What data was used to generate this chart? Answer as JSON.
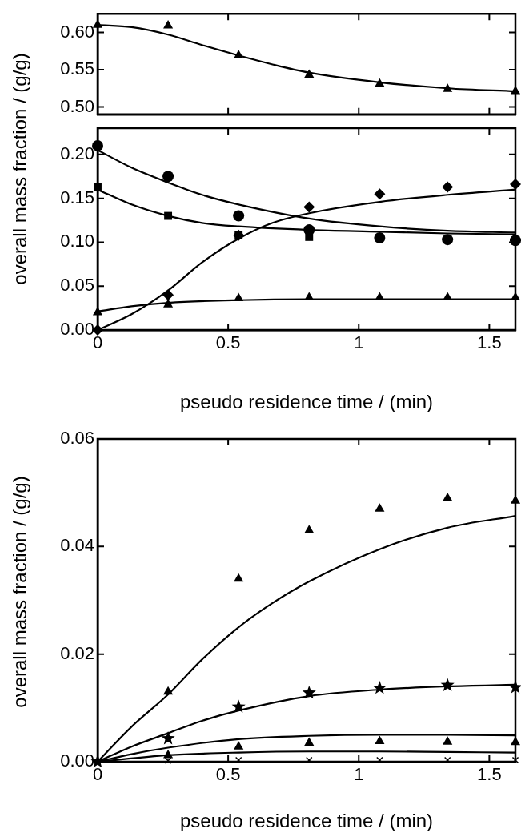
{
  "chart_data": [
    {
      "type": "scatter",
      "tick_labels": "y",
      "xlim": [
        0,
        1.6
      ],
      "xticks": [
        0,
        0.5,
        1,
        1.5
      ],
      "ylim": [
        0.49,
        0.625
      ],
      "yticks": [
        {
          "value": 0.5,
          "label": "0.50"
        },
        {
          "value": 0.55,
          "label": "0.55"
        },
        {
          "value": 0.6,
          "label": "0.60"
        }
      ],
      "series": [
        {
          "type": "scatter",
          "marker": "triangle",
          "color": "#000000",
          "x": [
            0,
            0.27,
            0.54,
            0.81,
            1.08,
            1.34,
            1.6
          ],
          "values": [
            0.61,
            0.609,
            0.569,
            0.543,
            0.531,
            0.524,
            0.521
          ]
        },
        {
          "type": "line",
          "marker": "none",
          "color": "#000000",
          "x": [
            0,
            0.13,
            0.27,
            0.4,
            0.54,
            0.67,
            0.81,
            1.08,
            1.34,
            1.6
          ],
          "values": [
            0.61,
            0.607,
            0.597,
            0.583,
            0.569,
            0.557,
            0.546,
            0.533,
            0.525,
            0.521
          ]
        }
      ]
    },
    {
      "type": "scatter",
      "xlabel": "pseudo residence time / (min)",
      "ylabel": "overall mass fraction / (g/g)",
      "xlim": [
        0,
        1.6
      ],
      "xticks": [
        0,
        0.5,
        1,
        1.5
      ],
      "ylim": [
        0,
        0.23
      ],
      "yticks": [
        {
          "value": 0,
          "label": "0.00"
        },
        {
          "value": 0.05,
          "label": "0.05"
        },
        {
          "value": 0.1,
          "label": "0.10"
        },
        {
          "value": 0.15,
          "label": "0.15"
        },
        {
          "value": 0.2,
          "label": "0.20"
        }
      ],
      "series": [
        {
          "type": "scatter",
          "marker": "circle",
          "color": "#000000",
          "x": [
            0,
            0.27,
            0.54,
            0.81,
            1.08,
            1.34,
            1.6
          ],
          "values": [
            0.21,
            0.175,
            0.13,
            0.114,
            0.105,
            0.103,
            0.102
          ]
        },
        {
          "type": "line",
          "marker": "none",
          "color": "#000000",
          "x": [
            0,
            0.13,
            0.27,
            0.4,
            0.54,
            0.81,
            1.08,
            1.34,
            1.6
          ],
          "values": [
            0.205,
            0.185,
            0.168,
            0.154,
            0.143,
            0.127,
            0.118,
            0.113,
            0.111
          ]
        },
        {
          "type": "scatter",
          "marker": "square",
          "color": "#000000",
          "x": [
            0,
            0.27,
            0.54,
            0.81
          ],
          "values": [
            0.163,
            0.13,
            0.108,
            0.106
          ]
        },
        {
          "type": "line",
          "marker": "none",
          "color": "#000000",
          "x": [
            0,
            0.13,
            0.27,
            0.4,
            0.54,
            0.81,
            1.08,
            1.34,
            1.6
          ],
          "values": [
            0.16,
            0.143,
            0.13,
            0.122,
            0.118,
            0.114,
            0.112,
            0.11,
            0.109
          ]
        },
        {
          "type": "scatter",
          "marker": "diamond",
          "color": "#000000",
          "x": [
            0,
            0.27,
            0.54,
            0.81,
            1.08,
            1.34,
            1.6
          ],
          "values": [
            0,
            0.04,
            0.108,
            0.14,
            0.155,
            0.163,
            0.166
          ]
        },
        {
          "type": "line",
          "marker": "none",
          "color": "#000000",
          "x": [
            0,
            0.13,
            0.27,
            0.4,
            0.54,
            0.67,
            0.81,
            1.08,
            1.34,
            1.6
          ],
          "values": [
            0,
            0.018,
            0.045,
            0.077,
            0.104,
            0.122,
            0.133,
            0.146,
            0.154,
            0.16
          ]
        },
        {
          "type": "scatter",
          "marker": "triangle",
          "color": "#000000",
          "x": [
            0,
            0.27,
            0.54,
            0.81,
            1.08,
            1.34,
            1.6
          ],
          "values": [
            0.02,
            0.029,
            0.036,
            0.037,
            0.037,
            0.037,
            0.037
          ]
        },
        {
          "type": "line",
          "marker": "none",
          "color": "#000000",
          "x": [
            0,
            0.13,
            0.27,
            0.54,
            0.81,
            1.08,
            1.6
          ],
          "values": [
            0.021,
            0.027,
            0.031,
            0.034,
            0.035,
            0.035,
            0.035
          ]
        }
      ]
    },
    {
      "type": "scatter",
      "xlabel": "pseudo residence time / (min)",
      "ylabel": "overall mass fraction / (g/g)",
      "xlim": [
        0,
        1.6
      ],
      "xticks": [
        0,
        0.5,
        1,
        1.5
      ],
      "ylim": [
        0,
        0.06
      ],
      "yticks": [
        {
          "value": 0,
          "label": "0.00"
        },
        {
          "value": 0.02,
          "label": "0.02"
        },
        {
          "value": 0.04,
          "label": "0.04"
        },
        {
          "value": 0.06,
          "label": "0.06"
        }
      ],
      "series": [
        {
          "type": "scatter",
          "marker": "triangle",
          "color": "#000000",
          "x": [
            0.27,
            0.54,
            0.81,
            1.08,
            1.34,
            1.6
          ],
          "values": [
            0.013,
            0.034,
            0.043,
            0.047,
            0.049,
            0.0485
          ]
        },
        {
          "type": "line",
          "marker": "none",
          "color": "#000000",
          "x": [
            0,
            0.13,
            0.27,
            0.4,
            0.54,
            0.67,
            0.81,
            1.08,
            1.34,
            1.6
          ],
          "values": [
            0,
            0.0065,
            0.0125,
            0.019,
            0.025,
            0.0295,
            0.0335,
            0.0395,
            0.0435,
            0.0457
          ]
        },
        {
          "type": "scatter",
          "marker": "star",
          "color": "#000000",
          "x": [
            0,
            0.27,
            0.54,
            0.81,
            1.08,
            1.34,
            1.6
          ],
          "values": [
            0,
            0.0043,
            0.0102,
            0.0128,
            0.0137,
            0.0142,
            0.0138
          ]
        },
        {
          "type": "line",
          "marker": "none",
          "color": "#000000",
          "x": [
            0,
            0.13,
            0.27,
            0.4,
            0.54,
            0.81,
            1.08,
            1.34,
            1.6
          ],
          "values": [
            0,
            0.0028,
            0.0053,
            0.0076,
            0.0095,
            0.0122,
            0.0134,
            0.014,
            0.0143
          ]
        },
        {
          "type": "scatter",
          "marker": "triangle",
          "color": "#000000",
          "x": [
            0.27,
            0.54,
            0.81,
            1.08,
            1.34,
            1.6
          ],
          "values": [
            0.0012,
            0.0028,
            0.0035,
            0.0038,
            0.0037,
            0.0036
          ]
        },
        {
          "type": "line",
          "marker": "none",
          "color": "#000000",
          "x": [
            0,
            0.13,
            0.27,
            0.54,
            0.81,
            1.08,
            1.34,
            1.6
          ],
          "values": [
            0,
            0.0014,
            0.0026,
            0.0042,
            0.0048,
            0.005,
            0.005,
            0.0049
          ]
        },
        {
          "type": "scatter",
          "marker": "cross",
          "color": "#000000",
          "x": [
            0.27,
            0.54,
            0.81,
            1.08,
            1.34,
            1.6
          ],
          "values": [
            0.0002,
            0.0003,
            0.0003,
            0.0003,
            0.0003,
            0.0003
          ]
        },
        {
          "type": "line",
          "marker": "none",
          "color": "#000000",
          "x": [
            0,
            0.27,
            0.54,
            0.81,
            1.08,
            1.34,
            1.6
          ],
          "values": [
            0,
            0.0012,
            0.0017,
            0.0019,
            0.0019,
            0.0018,
            0.0017
          ]
        }
      ]
    }
  ]
}
